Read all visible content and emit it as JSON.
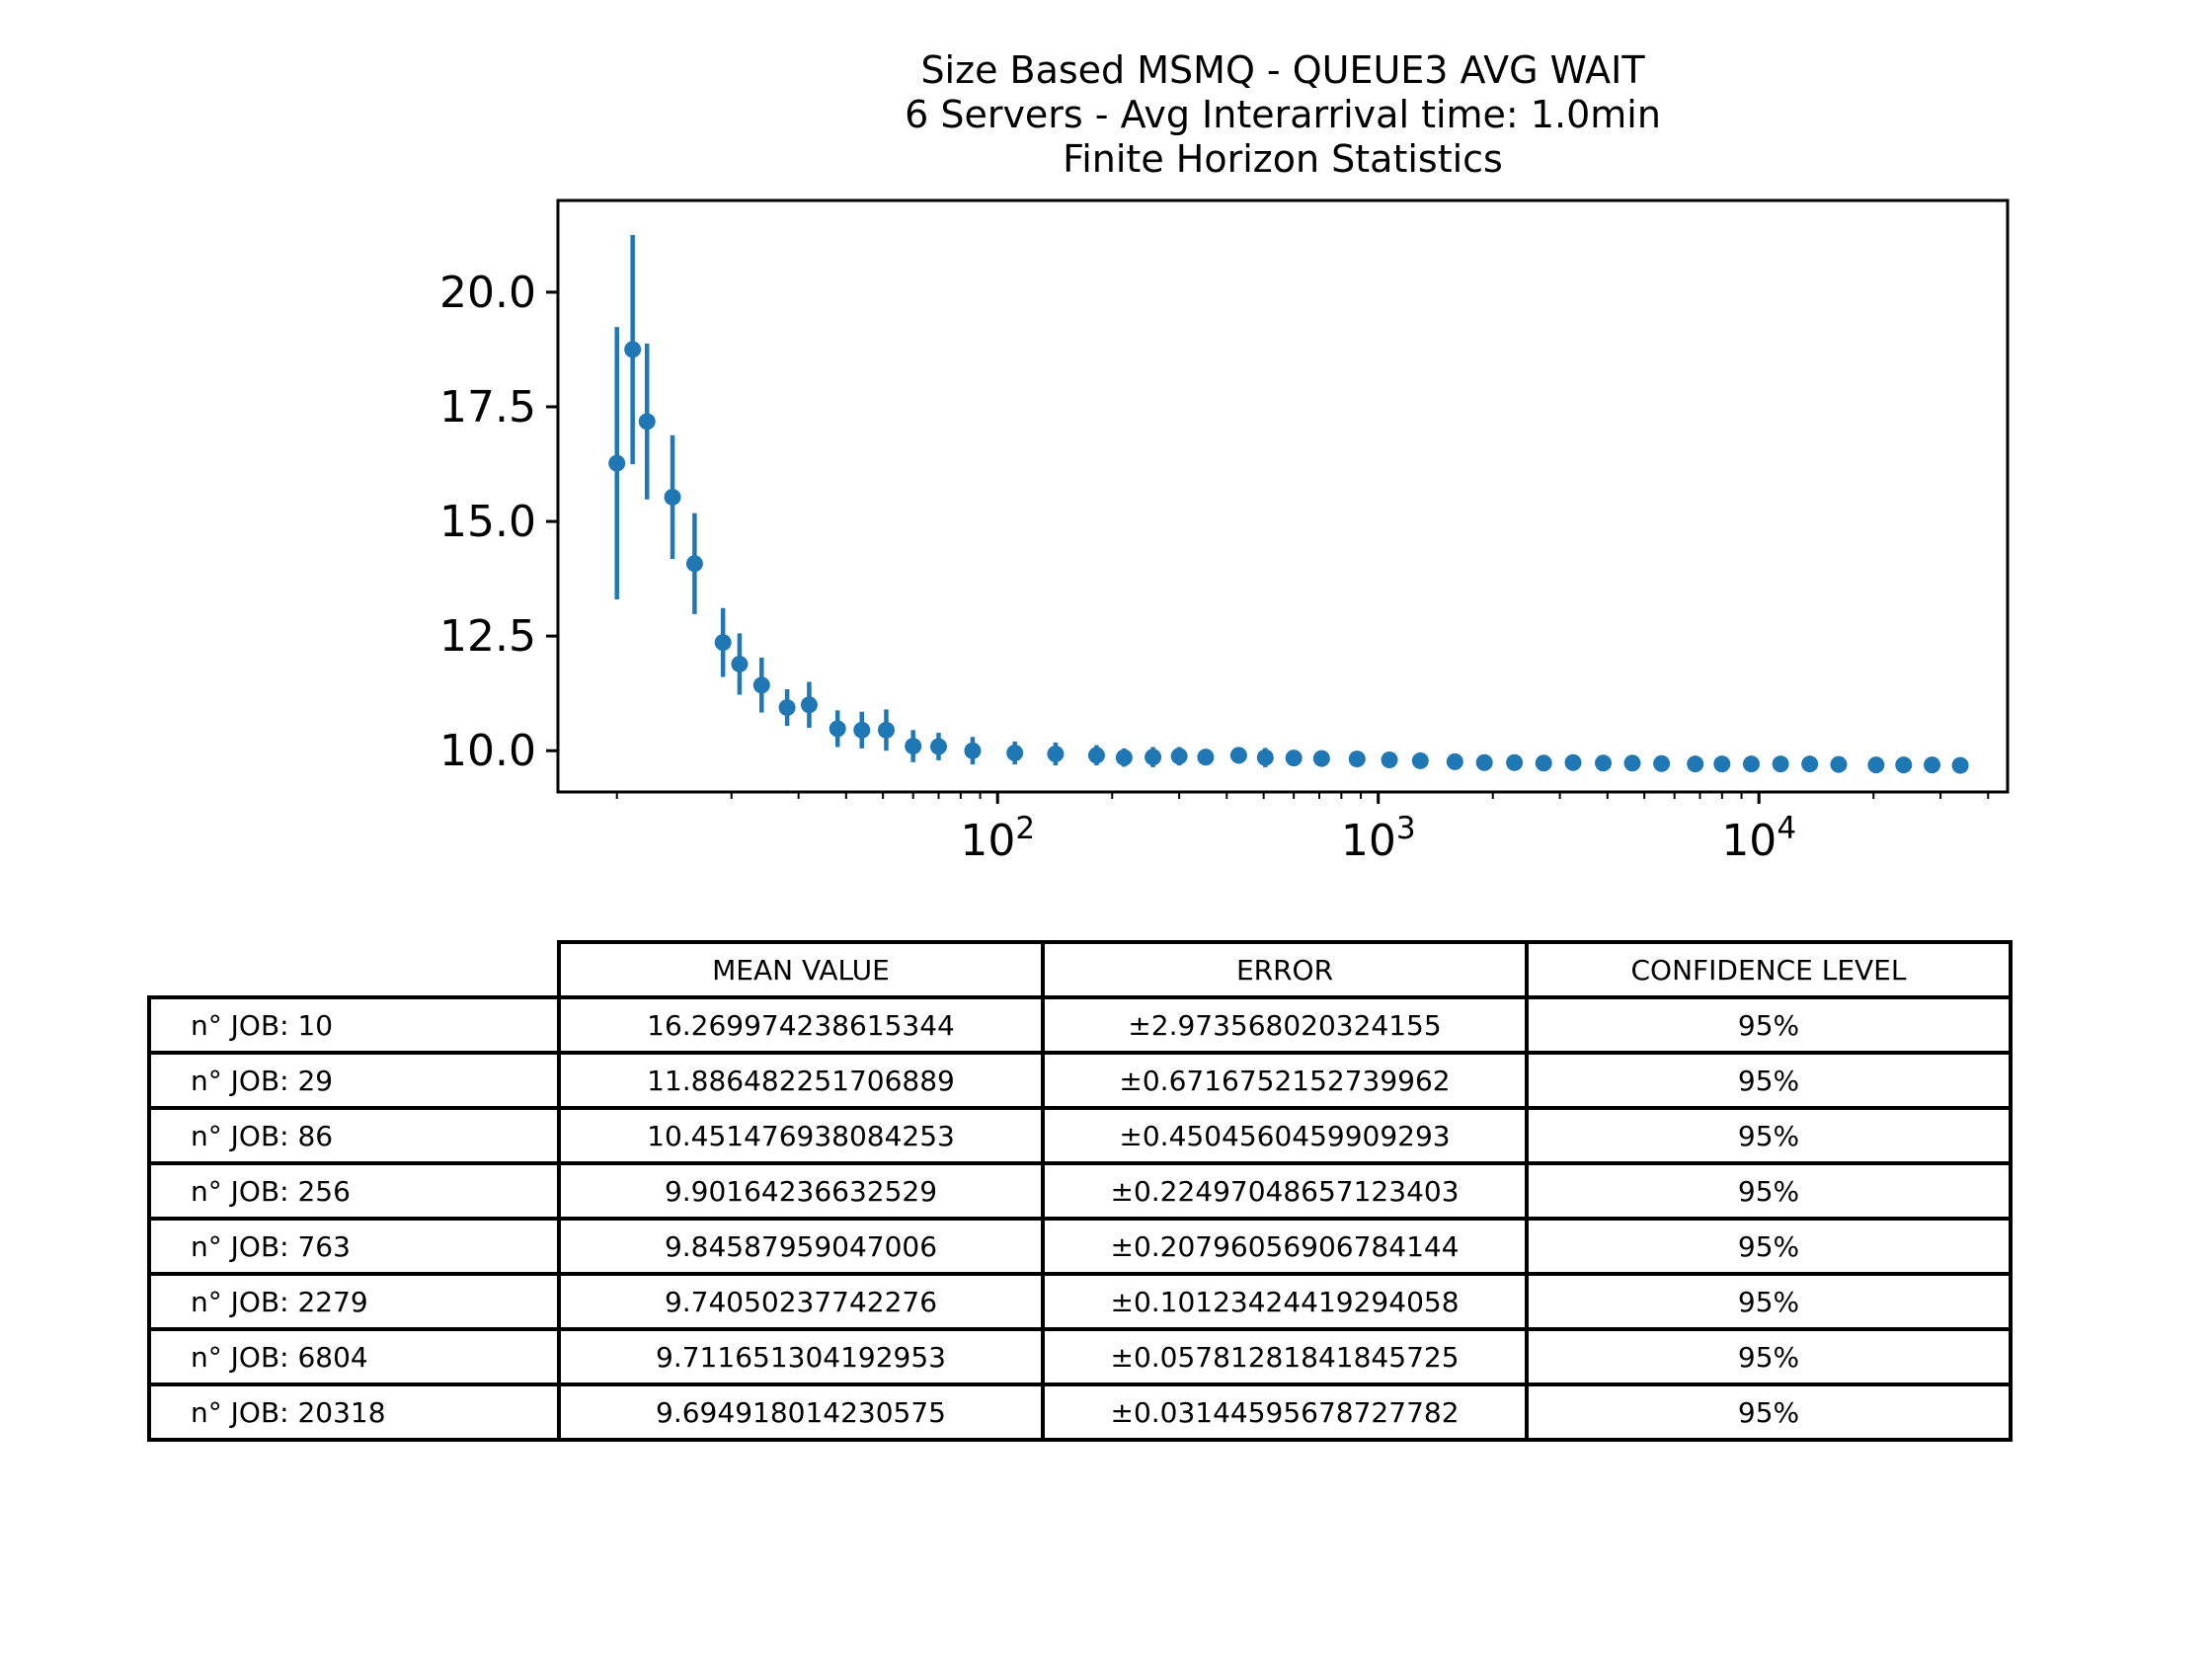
{
  "chart_data": {
    "type": "scatter",
    "title": [
      "Size Based MSMQ - QUEUE3 AVG WAIT",
      "6 Servers -  Avg Interarrival time: 1.0min",
      "Finite Horizon Statistics"
    ],
    "xlabel": "",
    "ylabel": "",
    "xscale": "log",
    "xlim": [
      7,
      45000
    ],
    "ylim": [
      9.1,
      22.0
    ],
    "xticks": [
      100,
      1000,
      10000
    ],
    "xtick_labels": [
      {
        "base": "10",
        "exp": "2"
      },
      {
        "base": "10",
        "exp": "3"
      },
      {
        "base": "10",
        "exp": "4"
      }
    ],
    "yticks": [
      10.0,
      12.5,
      15.0,
      17.5,
      20.0
    ],
    "ytick_labels": [
      "10.0",
      "12.5",
      "15.0",
      "17.5",
      "20.0"
    ],
    "grid": false,
    "color": "#1f77b4",
    "series": [
      {
        "x": [
          10,
          11,
          12,
          14,
          16,
          19,
          21,
          24,
          28,
          32,
          38,
          44,
          51,
          60,
          70,
          86,
          111,
          142,
          182,
          215,
          256,
          300,
          352,
          430,
          505,
          600,
          710,
          880,
          1070,
          1290,
          1590,
          1900,
          2279,
          2720,
          3250,
          3900,
          4650,
          5550,
          6804,
          8000,
          9550,
          11400,
          13600,
          16200,
          20318,
          24000,
          28500,
          33800
        ],
        "y": [
          16.27,
          18.75,
          17.18,
          15.53,
          14.08,
          12.36,
          11.89,
          11.43,
          10.94,
          11.0,
          10.48,
          10.45,
          10.45,
          10.1,
          10.09,
          10.0,
          9.95,
          9.93,
          9.9,
          9.85,
          9.86,
          9.88,
          9.86,
          9.9,
          9.85,
          9.84,
          9.83,
          9.82,
          9.8,
          9.78,
          9.76,
          9.74,
          9.74,
          9.73,
          9.74,
          9.73,
          9.73,
          9.72,
          9.71,
          9.71,
          9.71,
          9.71,
          9.71,
          9.7,
          9.69,
          9.69,
          9.69,
          9.68
        ],
        "err": [
          2.97,
          2.5,
          1.7,
          1.35,
          1.1,
          0.75,
          0.67,
          0.6,
          0.4,
          0.5,
          0.4,
          0.4,
          0.45,
          0.35,
          0.3,
          0.3,
          0.25,
          0.25,
          0.22,
          0.2,
          0.22,
          0.2,
          0.18,
          0.18,
          0.21,
          0.16,
          0.15,
          0.14,
          0.13,
          0.12,
          0.11,
          0.1,
          0.1,
          0.09,
          0.08,
          0.08,
          0.07,
          0.07,
          0.06,
          0.05,
          0.05,
          0.05,
          0.04,
          0.04,
          0.03,
          0.03,
          0.03,
          0.03
        ]
      }
    ],
    "table": {
      "headers": [
        "MEAN VALUE",
        "ERROR",
        "CONFIDENCE LEVEL"
      ],
      "rows": [
        {
          "label": "n° JOB: 10",
          "mean": "16.269974238615344",
          "error": "±2.973568020324155",
          "confidence": "95%"
        },
        {
          "label": "n° JOB: 29",
          "mean": "11.886482251706889",
          "error": "±0.6716752152739962",
          "confidence": "95%"
        },
        {
          "label": "n° JOB: 86",
          "mean": "10.451476938084253",
          "error": "±0.4504560459909293",
          "confidence": "95%"
        },
        {
          "label": "n° JOB: 256",
          "mean": "9.90164236632529",
          "error": "±0.22497048657123403",
          "confidence": "95%"
        },
        {
          "label": "n° JOB: 763",
          "mean": "9.84587959047006",
          "error": "±0.20796056906784144",
          "confidence": "95%"
        },
        {
          "label": "n° JOB: 2279",
          "mean": "9.74050237742276",
          "error": "±0.10123424419294058",
          "confidence": "95%"
        },
        {
          "label": "n° JOB: 6804",
          "mean": "9.711651304192953",
          "error": "±0.05781281841845725",
          "confidence": "95%"
        },
        {
          "label": "n° JOB: 20318",
          "mean": "9.694918014230575",
          "error": "±0.03144595678727782",
          "confidence": "95%"
        }
      ]
    }
  }
}
